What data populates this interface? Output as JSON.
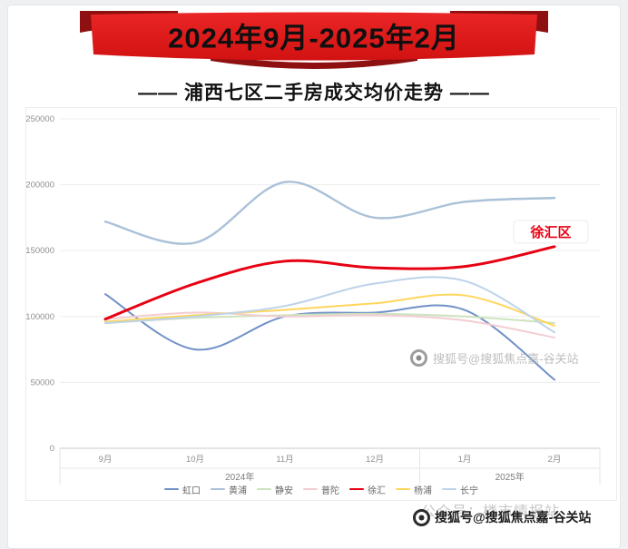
{
  "banner": {
    "label": "2024年9月-2025年2月",
    "band_color": "#e01d1d",
    "fold_color": "#8e1010"
  },
  "title": {
    "label": "—— 浦西七区二手房成交均价走势 ——"
  },
  "chart_data": {
    "type": "line",
    "title": "浦西七区二手房成交均价走势",
    "categories": [
      "9月",
      "10月",
      "11月",
      "12月",
      "1月",
      "2月"
    ],
    "year_groups": [
      {
        "label": "2024年",
        "from": 0,
        "to": 3
      },
      {
        "label": "2025年",
        "from": 4,
        "to": 5
      }
    ],
    "ylim": [
      0,
      250000
    ],
    "yticks": [
      0,
      50000,
      100000,
      150000,
      200000,
      250000
    ],
    "grid": true,
    "legend_position": "bottom",
    "series": [
      {
        "name": "虹口",
        "color": "#7191c8",
        "width": 2,
        "values": [
          117000,
          75000,
          100000,
          103000,
          105000,
          52000
        ]
      },
      {
        "name": "黄浦",
        "color": "#aac1d8",
        "width": 2.4,
        "values": [
          172000,
          156000,
          202000,
          175000,
          187000,
          190000
        ]
      },
      {
        "name": "静安",
        "color": "#cde3bd",
        "width": 2,
        "values": [
          95000,
          99000,
          101000,
          102000,
          100000,
          95000
        ]
      },
      {
        "name": "普陀",
        "color": "#f2cdd2",
        "width": 2,
        "values": [
          98000,
          103000,
          100000,
          101000,
          97000,
          84000
        ]
      },
      {
        "name": "徐汇",
        "color": "#e60012",
        "width": 3,
        "values": [
          98000,
          125000,
          142000,
          137000,
          138000,
          153000
        ]
      },
      {
        "name": "杨浦",
        "color": "#ffd65c",
        "width": 2,
        "values": [
          96000,
          101000,
          105000,
          110000,
          116000,
          93000
        ]
      },
      {
        "name": "长宁",
        "color": "#bdd3ea",
        "width": 2,
        "values": [
          95000,
          100000,
          108000,
          125000,
          127000,
          88000
        ]
      }
    ],
    "annotation": {
      "text": "徐汇区",
      "series": "徐汇"
    }
  },
  "watermarks": {
    "chart_text": "搜狐号@搜狐焦点嘉-谷关站",
    "footer_text": "搜狐号@搜狐焦点嘉-谷关站",
    "footer_behind_text": "公众号：楼市情报站"
  }
}
